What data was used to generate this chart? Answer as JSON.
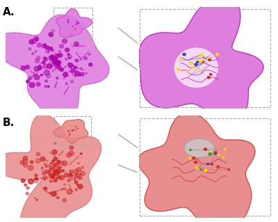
{
  "figure_width": 4.0,
  "figure_height": 3.19,
  "dpi": 100,
  "background_color": "#ffffff",
  "label_A": "A.",
  "label_B": "B.",
  "label_fontsize": 11,
  "label_color": "#000000",
  "panel_positions": {
    "protein_A": [
      0.02,
      0.52,
      0.42,
      0.46
    ],
    "zoom_A": [
      0.5,
      0.52,
      0.48,
      0.46
    ],
    "protein_B": [
      0.02,
      0.02,
      0.42,
      0.46
    ],
    "zoom_B": [
      0.5,
      0.02,
      0.48,
      0.46
    ]
  },
  "protein_A_color": "#dd77dd",
  "protein_A_dark": "#aa00aa",
  "protein_B_color": "#e88888",
  "protein_B_dark": "#cc2222",
  "zoom_A_bg": "#dd77dd",
  "zoom_B_bg": "#e88888",
  "molecule_yellow": "#ffdd00",
  "molecule_blue": "#2244cc",
  "molecule_green": "#22aa22",
  "molecule_red": "#dd2222",
  "dashed_box_color": "#aaaaaa",
  "connector_color": "#888888"
}
